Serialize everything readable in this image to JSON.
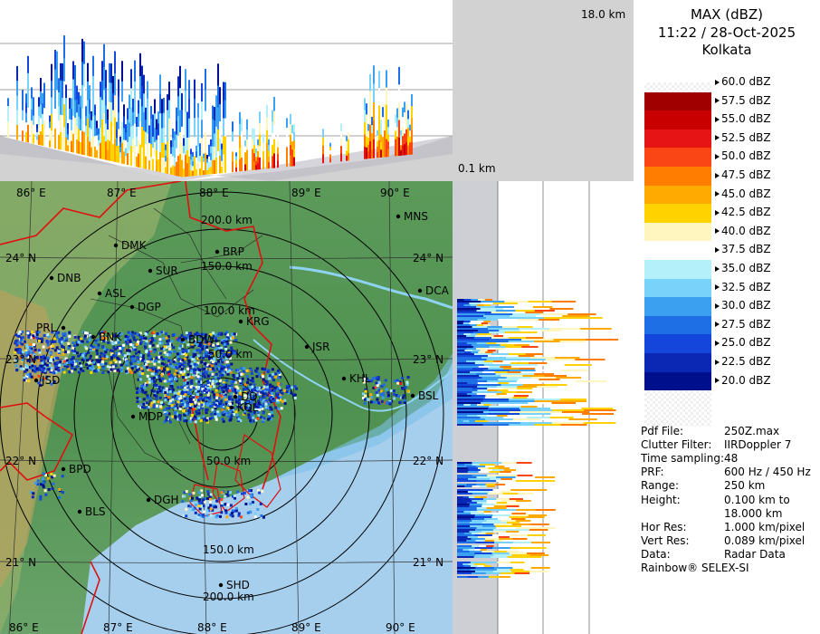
{
  "header": {
    "product": "MAX (dBZ)",
    "datetime": "11:22 / 28-Oct-2025",
    "station": "Kolkata"
  },
  "height_labels": {
    "top": "18.0 km",
    "bottom": "0.1 km"
  },
  "color_scale": [
    {
      "label": "60.0 dBZ",
      "color": "#ffffff"
    },
    {
      "label": "57.5 dBZ",
      "color": "#a00000"
    },
    {
      "label": "55.0 dBZ",
      "color": "#c80000"
    },
    {
      "label": "52.5 dBZ",
      "color": "#e61414"
    },
    {
      "label": "50.0 dBZ",
      "color": "#fa4614"
    },
    {
      "label": "47.5 dBZ",
      "color": "#ff7d00"
    },
    {
      "label": "45.0 dBZ",
      "color": "#ffaa00"
    },
    {
      "label": "42.5 dBZ",
      "color": "#ffd200"
    },
    {
      "label": "40.0 dBZ",
      "color": "#fff5be"
    },
    {
      "label": "37.5 dBZ",
      "color": "#ffffff"
    },
    {
      "label": "35.0 dBZ",
      "color": "#b4f0fa"
    },
    {
      "label": "32.5 dBZ",
      "color": "#78d2fa"
    },
    {
      "label": "30.0 dBZ",
      "color": "#3ca0f0"
    },
    {
      "label": "27.5 dBZ",
      "color": "#1e6ee6"
    },
    {
      "label": "25.0 dBZ",
      "color": "#1446dc"
    },
    {
      "label": "22.5 dBZ",
      "color": "#0a28b4"
    },
    {
      "label": "20.0 dBZ",
      "color": "#000f8c"
    }
  ],
  "info": [
    {
      "key": "Pdf File:",
      "value": "250Z.max"
    },
    {
      "key": "Clutter Filter:",
      "value": "IIRDoppler 7"
    },
    {
      "key": "Time sampling:",
      "value": "48"
    },
    {
      "key": "PRF:",
      "value": "600 Hz / 450 Hz"
    },
    {
      "key": "Range:",
      "value": "250 km"
    },
    {
      "key": "Height:",
      "value": "0.100 km to"
    },
    {
      "key": "",
      "value": "18.000 km"
    },
    {
      "key": "Hor Res:",
      "value": "1.000 km/pixel"
    },
    {
      "key": "Vert Res:",
      "value": "0.089 km/pixel"
    },
    {
      "key": "Data:",
      "value": "Radar Data"
    }
  ],
  "credit": "Rainbow® SELEX-SI",
  "map": {
    "lon_top": [
      "86° E",
      "87° E",
      "88° E",
      "89° E",
      "90° E"
    ],
    "lon_bottom": [
      "86° E",
      "87° E",
      "88° E",
      "89° E",
      "90° E"
    ],
    "lat_left": [
      "24° N",
      "23° N",
      "22° N",
      "21° N"
    ],
    "lat_right": [
      "24° N",
      "23° N",
      "22° N",
      "21° N"
    ],
    "ring_labels": [
      "200.0 km",
      "150.0 km",
      "100.0 km",
      "50.0 km",
      "50.0 km",
      "150.0 km",
      "200.0 km"
    ],
    "cities": [
      "MNS",
      "DMK",
      "BRP",
      "SUR",
      "DNB",
      "ASL",
      "DGP",
      "DCA",
      "KRG",
      "PRL",
      "BNK",
      "BDW",
      "JSR",
      "KHL",
      "BSL",
      "JSD",
      "MDP",
      "DD",
      "KOL",
      "BPD",
      "DGH",
      "BLS",
      "SHD"
    ]
  }
}
